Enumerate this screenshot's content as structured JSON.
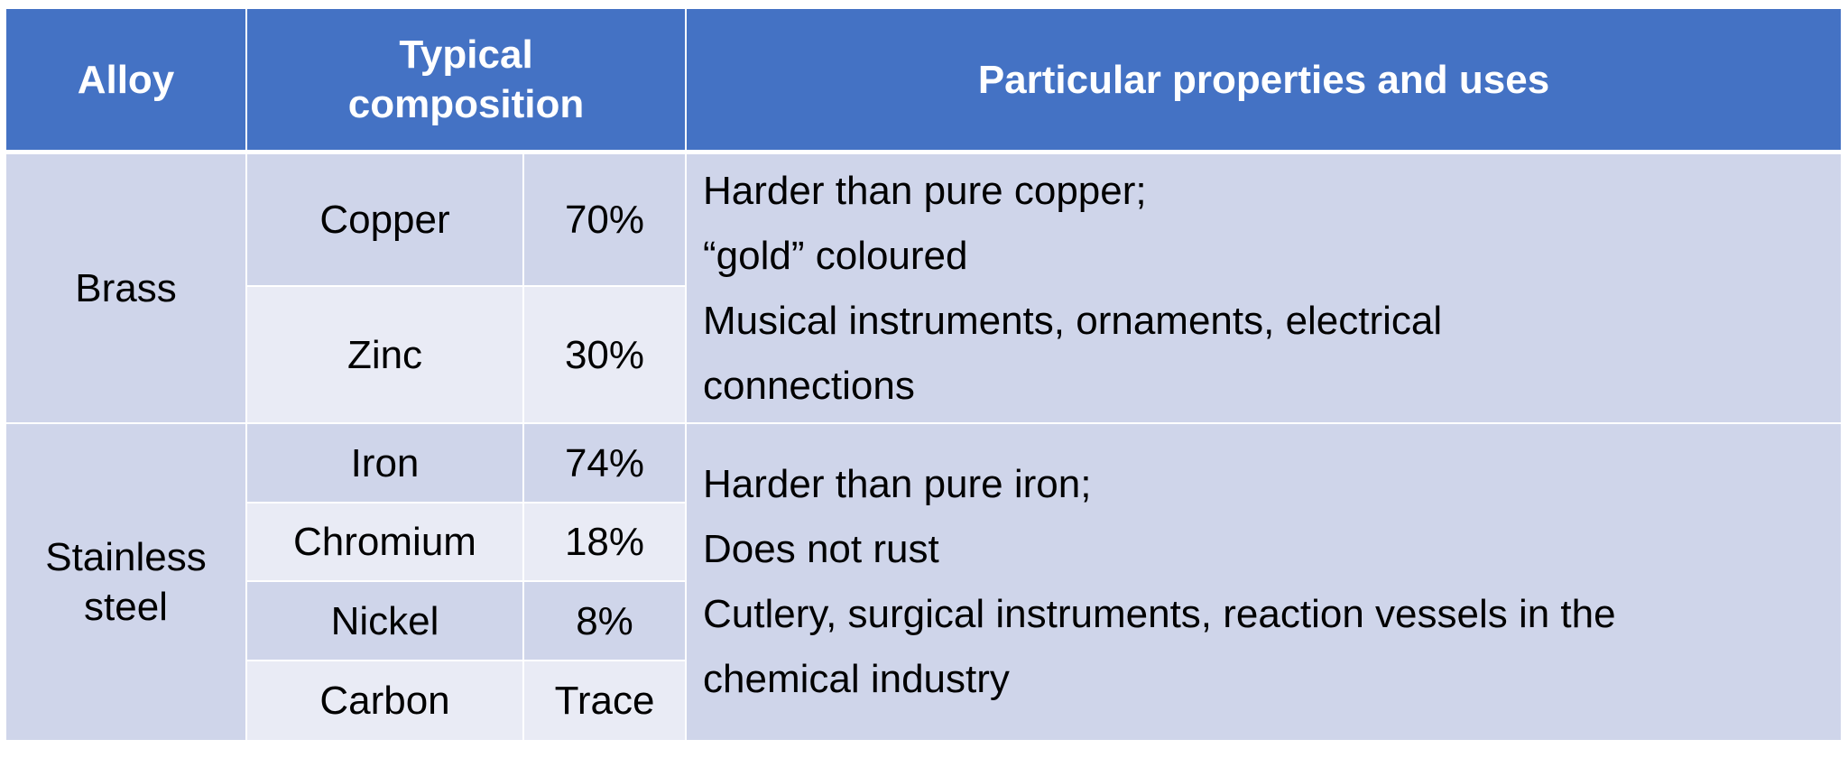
{
  "header": {
    "alloy": "Alloy",
    "composition": "Typical composition",
    "properties": "Particular properties and uses"
  },
  "colors": {
    "header": "#4472C4",
    "row_dark": "#CFD5EA",
    "row_light": "#E9EBF5"
  },
  "rows": [
    {
      "alloy": "Brass",
      "components": [
        {
          "element": "Copper",
          "percent": "70%"
        },
        {
          "element": "Zinc",
          "percent": "30%"
        }
      ],
      "properties": [
        "Harder than pure copper;",
        "“gold” coloured",
        "Musical instruments, ornaments, electrical",
        "connections"
      ]
    },
    {
      "alloy": "Stainless steel",
      "components": [
        {
          "element": "Iron",
          "percent": "74%"
        },
        {
          "element": "Chromium",
          "percent": "18%"
        },
        {
          "element": "Nickel",
          "percent": "8%"
        },
        {
          "element": "Carbon",
          "percent": "Trace"
        }
      ],
      "properties": [
        "Harder than pure iron;",
        "Does not rust",
        "Cutlery, surgical instruments, reaction vessels in the",
        "chemical industry"
      ]
    }
  ]
}
